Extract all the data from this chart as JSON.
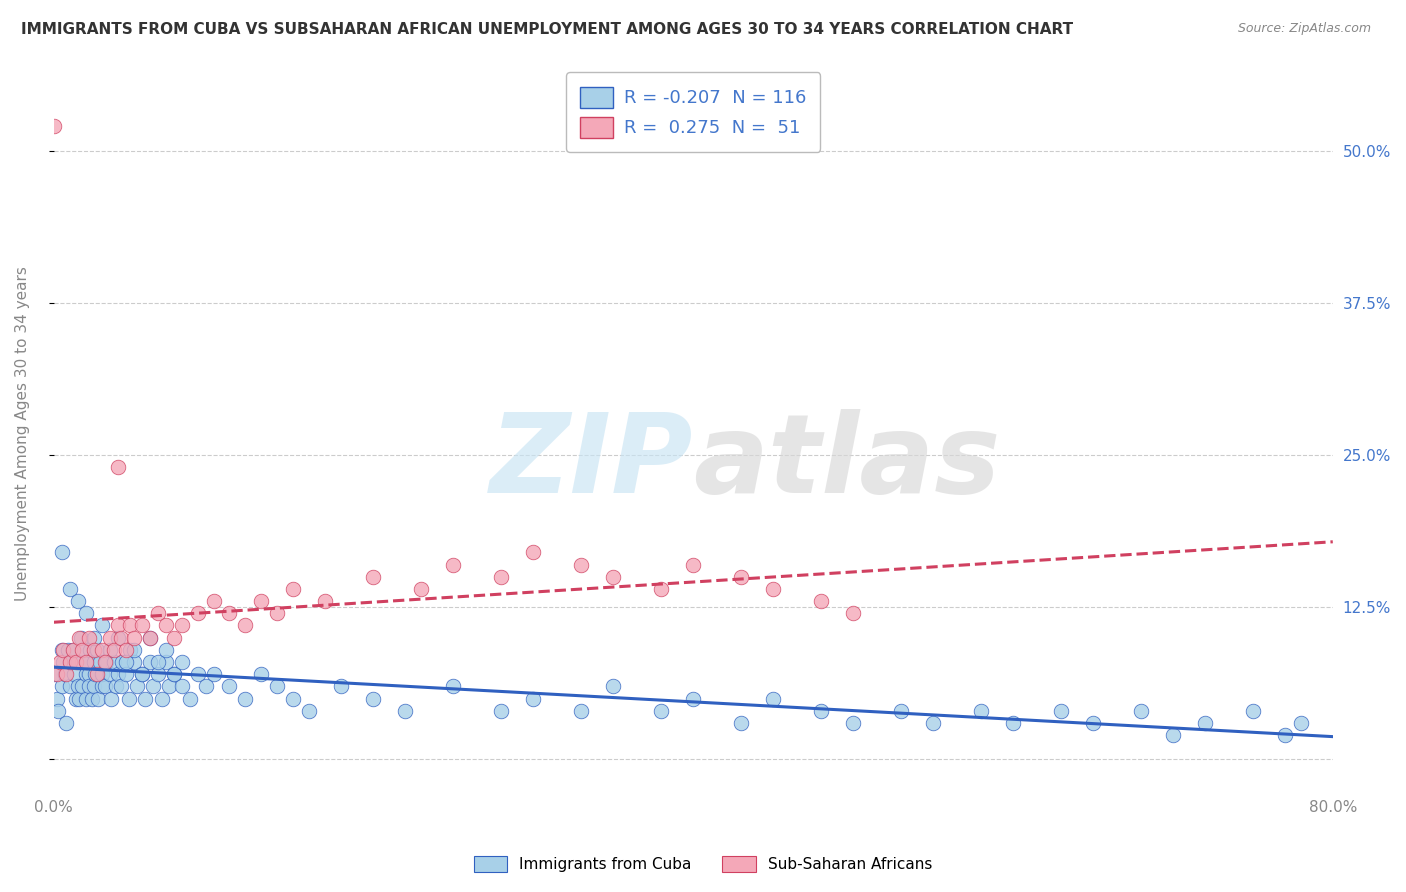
{
  "title": "IMMIGRANTS FROM CUBA VS SUBSAHARAN AFRICAN UNEMPLOYMENT AMONG AGES 30 TO 34 YEARS CORRELATION CHART",
  "source": "Source: ZipAtlas.com",
  "ylabel": "Unemployment Among Ages 30 to 34 years",
  "ytick_values": [
    0.0,
    0.125,
    0.25,
    0.375,
    0.5
  ],
  "ytick_labels": [
    "",
    "12.5%",
    "25.0%",
    "37.5%",
    "50.0%"
  ],
  "xlim": [
    0.0,
    0.8
  ],
  "ylim": [
    -0.025,
    0.56
  ],
  "legend_label1": "Immigrants from Cuba",
  "legend_label2": "Sub-Saharan Africans",
  "legend_R1": "-0.207",
  "legend_N1": "116",
  "legend_R2": "0.275",
  "legend_N2": "51",
  "color_blue": "#A8D0E8",
  "color_pink": "#F4A8B8",
  "line_color_blue": "#3060C0",
  "line_color_pink": "#D04060",
  "background_color": "#FFFFFF",
  "grid_color": "#CCCCCC",
  "title_color": "#333333",
  "axis_label_color": "#888888",
  "tick_color_right": "#4477CC",
  "blue_scatter_x": [
    0.0,
    0.002,
    0.003,
    0.005,
    0.005,
    0.006,
    0.007,
    0.008,
    0.009,
    0.01,
    0.01,
    0.012,
    0.013,
    0.014,
    0.015,
    0.015,
    0.016,
    0.017,
    0.018,
    0.018,
    0.019,
    0.02,
    0.02,
    0.021,
    0.022,
    0.022,
    0.023,
    0.024,
    0.025,
    0.025,
    0.026,
    0.027,
    0.028,
    0.029,
    0.03,
    0.03,
    0.032,
    0.033,
    0.035,
    0.036,
    0.038,
    0.039,
    0.04,
    0.042,
    0.043,
    0.045,
    0.047,
    0.048,
    0.05,
    0.052,
    0.055,
    0.057,
    0.06,
    0.062,
    0.065,
    0.068,
    0.07,
    0.072,
    0.075,
    0.08,
    0.085,
    0.09,
    0.095,
    0.1,
    0.11,
    0.12,
    0.13,
    0.14,
    0.15,
    0.16,
    0.18,
    0.2,
    0.22,
    0.25,
    0.28,
    0.3,
    0.33,
    0.35,
    0.38,
    0.4,
    0.43,
    0.45,
    0.48,
    0.5,
    0.53,
    0.55,
    0.58,
    0.6,
    0.63,
    0.65,
    0.68,
    0.7,
    0.72,
    0.75,
    0.77,
    0.78,
    0.005,
    0.01,
    0.015,
    0.02,
    0.025,
    0.03,
    0.035,
    0.04,
    0.045,
    0.05,
    0.055,
    0.06,
    0.065,
    0.07,
    0.075,
    0.08
  ],
  "blue_scatter_y": [
    0.07,
    0.05,
    0.04,
    0.06,
    0.09,
    0.08,
    0.07,
    0.03,
    0.09,
    0.08,
    0.06,
    0.09,
    0.07,
    0.05,
    0.08,
    0.06,
    0.05,
    0.1,
    0.08,
    0.06,
    0.09,
    0.07,
    0.05,
    0.08,
    0.07,
    0.06,
    0.09,
    0.05,
    0.08,
    0.06,
    0.07,
    0.09,
    0.05,
    0.08,
    0.06,
    0.07,
    0.06,
    0.08,
    0.07,
    0.05,
    0.08,
    0.06,
    0.07,
    0.06,
    0.08,
    0.07,
    0.05,
    0.09,
    0.08,
    0.06,
    0.07,
    0.05,
    0.08,
    0.06,
    0.07,
    0.05,
    0.08,
    0.06,
    0.07,
    0.06,
    0.05,
    0.07,
    0.06,
    0.07,
    0.06,
    0.05,
    0.07,
    0.06,
    0.05,
    0.04,
    0.06,
    0.05,
    0.04,
    0.06,
    0.04,
    0.05,
    0.04,
    0.06,
    0.04,
    0.05,
    0.03,
    0.05,
    0.04,
    0.03,
    0.04,
    0.03,
    0.04,
    0.03,
    0.04,
    0.03,
    0.04,
    0.02,
    0.03,
    0.04,
    0.02,
    0.03,
    0.17,
    0.14,
    0.13,
    0.12,
    0.1,
    0.11,
    0.09,
    0.1,
    0.08,
    0.09,
    0.07,
    0.1,
    0.08,
    0.09,
    0.07,
    0.08
  ],
  "pink_scatter_x": [
    0.0,
    0.002,
    0.004,
    0.006,
    0.008,
    0.01,
    0.012,
    0.014,
    0.016,
    0.018,
    0.02,
    0.022,
    0.025,
    0.027,
    0.03,
    0.032,
    0.035,
    0.038,
    0.04,
    0.042,
    0.045,
    0.048,
    0.05,
    0.055,
    0.06,
    0.065,
    0.07,
    0.075,
    0.08,
    0.09,
    0.1,
    0.11,
    0.12,
    0.13,
    0.14,
    0.15,
    0.17,
    0.2,
    0.23,
    0.25,
    0.28,
    0.3,
    0.33,
    0.35,
    0.38,
    0.4,
    0.43,
    0.45,
    0.48,
    0.5,
    0.04
  ],
  "pink_scatter_y": [
    0.52,
    0.07,
    0.08,
    0.09,
    0.07,
    0.08,
    0.09,
    0.08,
    0.1,
    0.09,
    0.08,
    0.1,
    0.09,
    0.07,
    0.09,
    0.08,
    0.1,
    0.09,
    0.11,
    0.1,
    0.09,
    0.11,
    0.1,
    0.11,
    0.1,
    0.12,
    0.11,
    0.1,
    0.11,
    0.12,
    0.13,
    0.12,
    0.11,
    0.13,
    0.12,
    0.14,
    0.13,
    0.15,
    0.14,
    0.16,
    0.15,
    0.17,
    0.16,
    0.15,
    0.14,
    0.16,
    0.15,
    0.14,
    0.13,
    0.12,
    0.24
  ]
}
